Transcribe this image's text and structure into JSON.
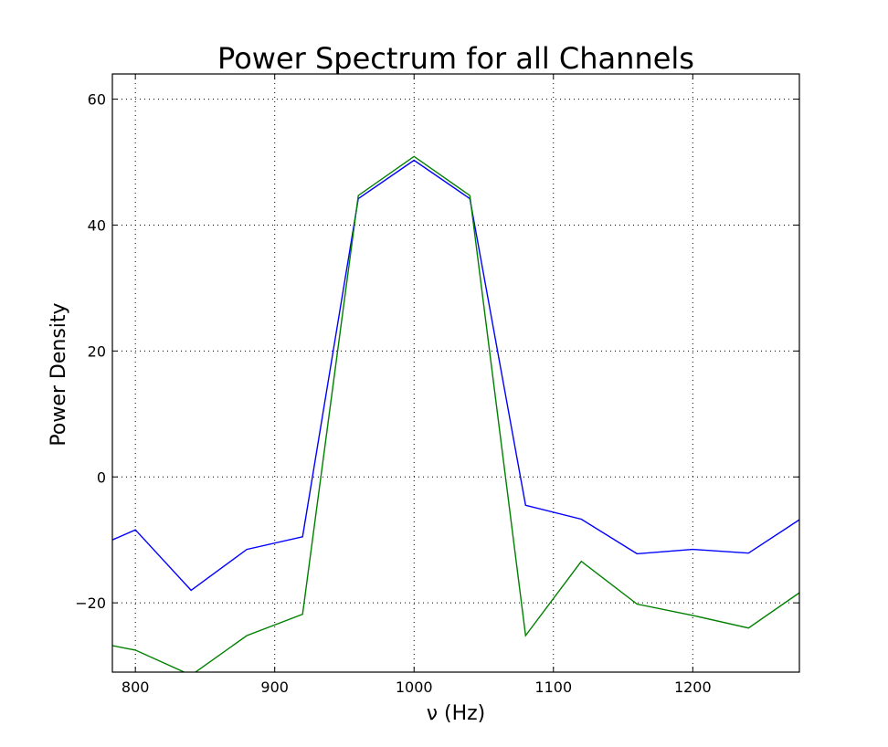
{
  "chart_data": {
    "type": "line",
    "title": "Power Spectrum for all Channels",
    "xlabel": "ν (Hz)",
    "ylabel": "Power Density",
    "xlim": [
      783.5,
      1276.5
    ],
    "ylim": [
      -31,
      64
    ],
    "x_ticks": [
      800,
      900,
      1000,
      1100,
      1200
    ],
    "x_tick_labels": [
      "800",
      "900",
      "1000",
      "1100",
      "1200"
    ],
    "y_ticks": [
      -20,
      0,
      20,
      40,
      60
    ],
    "y_tick_labels": [
      "−20",
      "0",
      "20",
      "40",
      "60"
    ],
    "grid": true,
    "series": [
      {
        "color": "#0000ff",
        "x": [
          783.5,
          800,
          840,
          880,
          920,
          960,
          1000,
          1040,
          1080,
          1120,
          1160,
          1200,
          1240,
          1276.5
        ],
        "values": [
          -10,
          -8.4,
          -18,
          -11.5,
          -9.5,
          44.2,
          50.3,
          44.2,
          -4.5,
          -6.7,
          -12.2,
          -11.5,
          -12.1,
          -6.8
        ]
      },
      {
        "color": "#008000",
        "x": [
          783.5,
          800,
          840,
          880,
          920,
          960,
          1000,
          1040,
          1080,
          1120,
          1160,
          1200,
          1240,
          1276.5
        ],
        "values": [
          -26.8,
          -27.5,
          -31.5,
          -25.2,
          -21.8,
          44.7,
          50.9,
          44.7,
          -25.2,
          -13.4,
          -20.2,
          -22,
          -24,
          -18.4
        ]
      }
    ]
  }
}
